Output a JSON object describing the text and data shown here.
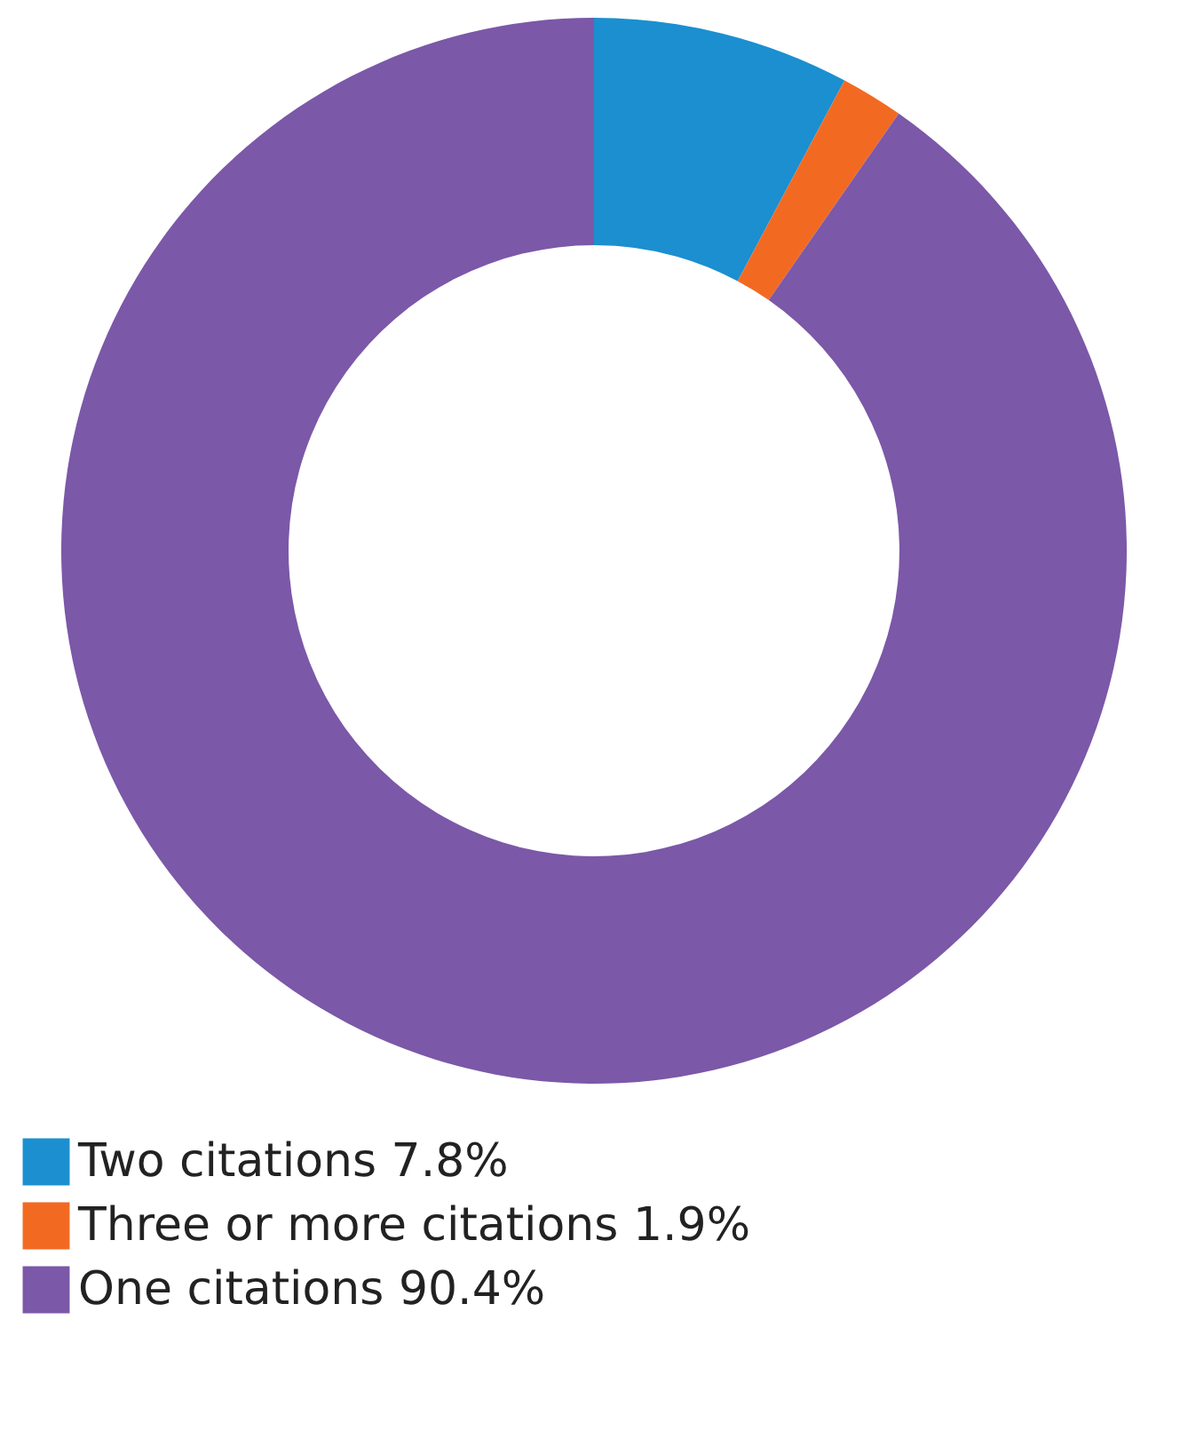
{
  "chart_data": {
    "type": "donut",
    "categories": [
      "Two citations",
      "Three or more citations",
      "One citations"
    ],
    "values": [
      7.8,
      1.9,
      90.4
    ],
    "value_labels": [
      "7.8%",
      "1.9%",
      "90.4%"
    ],
    "colors": [
      "#1b8fd0",
      "#f26a22",
      "#7b58a8"
    ],
    "legend": "bottom left"
  }
}
